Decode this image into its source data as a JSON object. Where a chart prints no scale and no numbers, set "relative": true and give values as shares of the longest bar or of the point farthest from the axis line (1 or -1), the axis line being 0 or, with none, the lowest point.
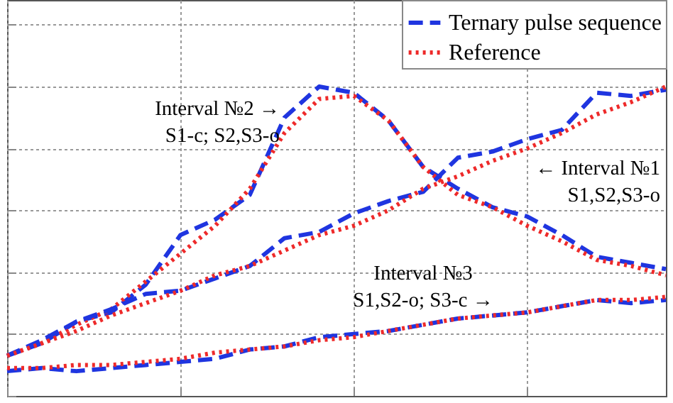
{
  "chart_data": {
    "type": "line",
    "relative": true,
    "categories": [
      null,
      null,
      null,
      null,
      null,
      null,
      null,
      null,
      null,
      null,
      null,
      null,
      null,
      null,
      null,
      null,
      null,
      null,
      null,
      null
    ],
    "series": [
      {
        "name": "Ternary pulse sequence",
        "color": "#1f35e0",
        "line_style": "dashed",
        "values": [
          0.13,
          0.17,
          0.24,
          0.27,
          0.36,
          0.52,
          0.57,
          0.65,
          0.9,
          1.0,
          0.98,
          0.89,
          0.74,
          0.67,
          0.61,
          0.58,
          0.52,
          0.45,
          0.43,
          0.41
        ]
      },
      {
        "name": "Reference",
        "color": "#ee2a2a",
        "line_style": "dotted",
        "values": [
          0.13,
          0.17,
          0.23,
          0.28,
          0.37,
          0.46,
          0.55,
          0.67,
          0.85,
          0.96,
          0.97,
          0.89,
          0.74,
          0.65,
          0.61,
          0.55,
          0.5,
          0.44,
          0.42,
          0.39
        ]
      },
      {
        "color": "#1f35e0",
        "line_style": "dashed",
        "values": [
          0.13,
          0.18,
          0.24,
          0.28,
          0.33,
          0.34,
          0.38,
          0.42,
          0.51,
          0.53,
          0.59,
          0.63,
          0.66,
          0.77,
          0.79,
          0.83,
          0.86,
          0.98,
          0.97,
          0.99
        ]
      },
      {
        "color": "#ee2a2a",
        "line_style": "dotted",
        "values": [
          0.13,
          0.17,
          0.21,
          0.26,
          0.3,
          0.34,
          0.39,
          0.42,
          0.47,
          0.52,
          0.55,
          0.6,
          0.67,
          0.71,
          0.76,
          0.8,
          0.85,
          0.91,
          0.95,
          1.0
        ]
      },
      {
        "color": "#1f35e0",
        "line_style": "dashed",
        "values": [
          0.08,
          0.09,
          0.08,
          0.09,
          0.1,
          0.11,
          0.12,
          0.15,
          0.16,
          0.19,
          0.2,
          0.21,
          0.23,
          0.25,
          0.26,
          0.27,
          0.29,
          0.31,
          0.3,
          0.31
        ]
      },
      {
        "color": "#ee2a2a",
        "line_style": "dotted",
        "values": [
          0.09,
          0.09,
          0.1,
          0.1,
          0.11,
          0.12,
          0.14,
          0.15,
          0.16,
          0.18,
          0.19,
          0.21,
          0.23,
          0.25,
          0.26,
          0.27,
          0.29,
          0.31,
          0.31,
          0.32
        ]
      }
    ],
    "annotations": [
      "Interval №2 →\nS1-c; S2,S3-o",
      "← Interval №1\nS1,S2,S3-o",
      "Interval №3\nS1,S2-o; S3-c →"
    ],
    "grid": true,
    "legend": "top right"
  }
}
